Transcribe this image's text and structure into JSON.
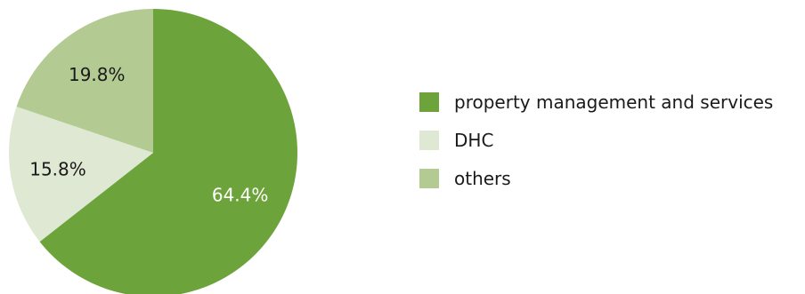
{
  "chart_data": {
    "type": "pie",
    "categories": [
      "property management and services",
      "DHC",
      "others"
    ],
    "values": [
      64.4,
      15.8,
      19.8
    ],
    "value_labels": [
      "64.4%",
      "15.8%",
      "19.8%"
    ],
    "colors": [
      "#6da33b",
      "#dfe8d2",
      "#b3cb93"
    ],
    "label_colors": [
      "#ffffff",
      "#1a1a1a",
      "#1a1a1a"
    ],
    "start_angle": "12 o'clock",
    "direction": "clockwise",
    "legend": {
      "placement": "right",
      "items": [
        {
          "label": "property management and services",
          "color": "#6da33b"
        },
        {
          "label": "DHC",
          "color": "#dfe8d2"
        },
        {
          "label": "others",
          "color": "#b3cb93"
        }
      ]
    }
  }
}
